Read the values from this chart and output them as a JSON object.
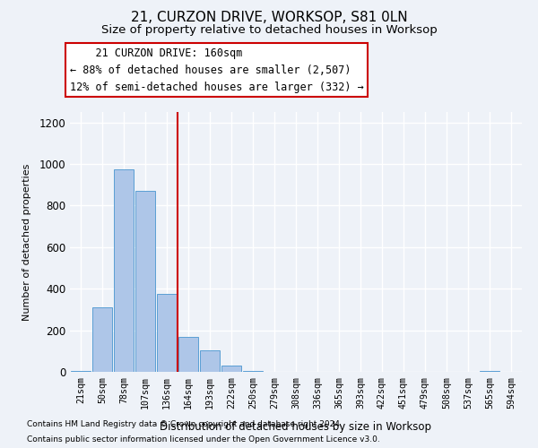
{
  "title": "21, CURZON DRIVE, WORKSOP, S81 0LN",
  "subtitle": "Size of property relative to detached houses in Worksop",
  "xlabel": "Distribution of detached houses by size in Worksop",
  "ylabel": "Number of detached properties",
  "footnote1": "Contains HM Land Registry data © Crown copyright and database right 2024.",
  "footnote2": "Contains public sector information licensed under the Open Government Licence v3.0.",
  "bin_labels": [
    "21sqm",
    "50sqm",
    "78sqm",
    "107sqm",
    "136sqm",
    "164sqm",
    "193sqm",
    "222sqm",
    "250sqm",
    "279sqm",
    "308sqm",
    "336sqm",
    "365sqm",
    "393sqm",
    "422sqm",
    "451sqm",
    "479sqm",
    "508sqm",
    "537sqm",
    "565sqm",
    "594sqm"
  ],
  "bar_values": [
    5,
    310,
    975,
    870,
    375,
    170,
    105,
    30,
    5,
    0,
    0,
    0,
    0,
    0,
    0,
    0,
    0,
    0,
    0,
    5,
    0
  ],
  "bar_color": "#aec6e8",
  "bar_edge_color": "#5a9fd4",
  "vline_x_index": 5,
  "vline_color": "#cc0000",
  "annotation_line1": "    21 CURZON DRIVE: 160sqm",
  "annotation_line2": "← 88% of detached houses are smaller (2,507)",
  "annotation_line3": "12% of semi-detached houses are larger (332) →",
  "annotation_box_color": "#ffffff",
  "annotation_box_edge_color": "#cc0000",
  "ylim": [
    0,
    1250
  ],
  "yticks": [
    0,
    200,
    400,
    600,
    800,
    1000,
    1200
  ],
  "bg_color": "#eef2f8",
  "plot_bg_color": "#eef2f8",
  "grid_color": "#ffffff",
  "title_fontsize": 11,
  "subtitle_fontsize": 9.5,
  "annotation_fontsize": 8.5
}
